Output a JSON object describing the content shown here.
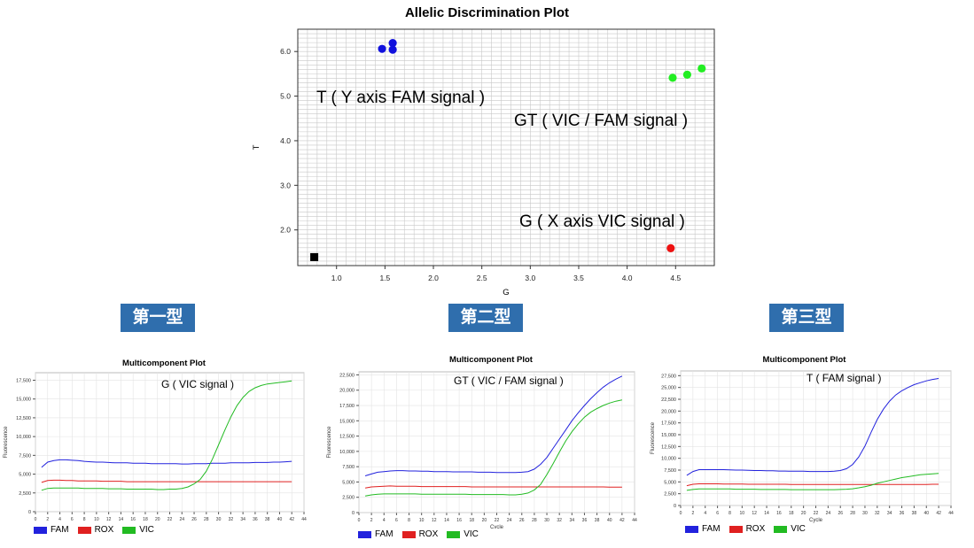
{
  "colors": {
    "FAM": "#2222dd",
    "ROX": "#e02020",
    "VIC": "#22bb22",
    "allele_T": "#1111dd",
    "allele_GT": "#22ee22",
    "allele_G": "#ee1111",
    "ntc": "#000000",
    "type_label_bg": "#2f6ead"
  },
  "allelic": {
    "annotations": {
      "t": "T ( Y axis FAM signal )",
      "gt": "GT ( VIC / FAM signal )",
      "g": "G ( X axis VIC signal )"
    }
  },
  "types": {
    "type1": "第一型",
    "type2": "第二型",
    "type3": "第三型"
  },
  "multicomponent": [
    {
      "annotation": "G ( VIC signal )",
      "ylabel": "Fluorescence",
      "xlabel": "Cycle",
      "title": "Multicomponent Plot"
    },
    {
      "annotation": "GT ( VIC / FAM signal )",
      "ylabel": "Fluorescence",
      "xlabel": "Cycle",
      "title": "Multicomponent Plot"
    },
    {
      "annotation": "T ( FAM signal )",
      "ylabel": "Fluorescence",
      "xlabel": "Cycle",
      "title": "Multicomponent Plot"
    }
  ],
  "legend": {
    "fam": "FAM",
    "rox": "ROX",
    "vic": "VIC"
  },
  "chart_data": [
    {
      "type": "scatter",
      "title": "Allelic Discrimination Plot",
      "xlabel": "G",
      "ylabel": "T",
      "xlim": [
        0.6,
        4.9
      ],
      "ylim": [
        1.2,
        6.5
      ],
      "xticks": [
        "1.0",
        "1.5",
        "2.0",
        "2.5",
        "3.0",
        "3.5",
        "4.0",
        "4.5"
      ],
      "yticks": [
        "2.0",
        "3.0",
        "4.0",
        "5.0",
        "6.0"
      ],
      "grid": true,
      "series": [
        {
          "points": [
            {
              "x": 1.47,
              "y": 6.06
            },
            {
              "x": 1.58,
              "y": 6.04
            },
            {
              "x": 1.58,
              "y": 6.19
            }
          ],
          "color": "#1111dd",
          "marker": "circle"
        },
        {
          "points": [
            {
              "x": 4.47,
              "y": 5.41
            },
            {
              "x": 4.62,
              "y": 5.48
            },
            {
              "x": 4.77,
              "y": 5.62
            }
          ],
          "color": "#22ee22",
          "marker": "circle"
        },
        {
          "points": [
            {
              "x": 4.45,
              "y": 1.59
            }
          ],
          "color": "#ee1111",
          "marker": "circle"
        },
        {
          "points": [
            {
              "x": 0.77,
              "y": 1.39
            }
          ],
          "color": "#000000",
          "marker": "square"
        }
      ]
    },
    {
      "type": "line",
      "title": "Multicomponent Plot",
      "xlabel": "Cycle",
      "ylabel": "Fluorescence",
      "xlim": [
        0,
        44
      ],
      "ylim": [
        0,
        18500
      ],
      "xticks": [
        0,
        2,
        4,
        6,
        8,
        10,
        12,
        14,
        16,
        18,
        20,
        22,
        24,
        26,
        28,
        30,
        32,
        34,
        36,
        38,
        40,
        42,
        44
      ],
      "yticks": [
        0,
        2500,
        5000,
        7500,
        10000,
        12500,
        15000,
        17500
      ],
      "ytick_labels": [
        "0",
        "2,500",
        "5,000",
        "7,500",
        "10,000",
        "12,500",
        "15,000",
        "17,500"
      ],
      "x": [
        1,
        2,
        3,
        4,
        5,
        6,
        7,
        8,
        9,
        10,
        11,
        12,
        13,
        14,
        15,
        16,
        17,
        18,
        19,
        20,
        21,
        22,
        23,
        24,
        25,
        26,
        27,
        28,
        29,
        30,
        31,
        32,
        33,
        34,
        35,
        36,
        37,
        38,
        39,
        40,
        41,
        42
      ],
      "series": [
        {
          "name": "FAM",
          "values": [
            5900,
            6600,
            6800,
            6900,
            6900,
            6850,
            6800,
            6700,
            6650,
            6600,
            6600,
            6550,
            6500,
            6500,
            6500,
            6450,
            6450,
            6450,
            6400,
            6400,
            6400,
            6400,
            6400,
            6350,
            6350,
            6400,
            6400,
            6400,
            6450,
            6450,
            6450,
            6500,
            6500,
            6500,
            6500,
            6550,
            6550,
            6550,
            6600,
            6600,
            6650,
            6700
          ]
        },
        {
          "name": "ROX",
          "values": [
            3900,
            4150,
            4200,
            4200,
            4150,
            4150,
            4100,
            4100,
            4100,
            4100,
            4050,
            4050,
            4050,
            4050,
            4000,
            4000,
            4000,
            4000,
            4000,
            4000,
            4000,
            4000,
            4000,
            4000,
            4000,
            4000,
            4000,
            4000,
            4000,
            4000,
            4000,
            4000,
            4000,
            4000,
            4000,
            4000,
            4000,
            4000,
            4000,
            4000,
            4000,
            4000
          ]
        },
        {
          "name": "VIC",
          "values": [
            2850,
            3100,
            3150,
            3150,
            3150,
            3150,
            3150,
            3100,
            3100,
            3100,
            3100,
            3050,
            3050,
            3050,
            3000,
            3000,
            3000,
            3000,
            3000,
            2950,
            2950,
            3000,
            3000,
            3100,
            3300,
            3700,
            4300,
            5400,
            7000,
            8900,
            10800,
            12600,
            14100,
            15200,
            16000,
            16500,
            16800,
            17000,
            17100,
            17200,
            17300,
            17400
          ]
        }
      ]
    },
    {
      "type": "line",
      "title": "Multicomponent Plot",
      "xlabel": "Cycle",
      "ylabel": "Fluorescence",
      "xlim": [
        0,
        44
      ],
      "ylim": [
        0,
        23000
      ],
      "xticks": [
        0,
        2,
        4,
        6,
        8,
        10,
        12,
        14,
        16,
        18,
        20,
        22,
        24,
        26,
        28,
        30,
        32,
        34,
        36,
        38,
        40,
        42,
        44
      ],
      "yticks": [
        0,
        2500,
        5000,
        7500,
        10000,
        12500,
        15000,
        17500,
        20000,
        22500
      ],
      "ytick_labels": [
        "0",
        "2,500",
        "5,000",
        "7,500",
        "10,000",
        "12,500",
        "15,000",
        "17,500",
        "20,000",
        "22,500"
      ],
      "x": [
        1,
        2,
        3,
        4,
        5,
        6,
        7,
        8,
        9,
        10,
        11,
        12,
        13,
        14,
        15,
        16,
        17,
        18,
        19,
        20,
        21,
        22,
        23,
        24,
        25,
        26,
        27,
        28,
        29,
        30,
        31,
        32,
        33,
        34,
        35,
        36,
        37,
        38,
        39,
        40,
        41,
        42
      ],
      "series": [
        {
          "name": "FAM",
          "values": [
            6000,
            6300,
            6600,
            6700,
            6800,
            6850,
            6850,
            6800,
            6800,
            6750,
            6750,
            6700,
            6700,
            6700,
            6650,
            6650,
            6650,
            6650,
            6600,
            6600,
            6600,
            6550,
            6550,
            6550,
            6550,
            6600,
            6700,
            7100,
            7900,
            9000,
            10500,
            12000,
            13500,
            15000,
            16300,
            17500,
            18600,
            19600,
            20500,
            21200,
            21800,
            22300
          ]
        },
        {
          "name": "ROX",
          "values": [
            4000,
            4200,
            4250,
            4300,
            4350,
            4300,
            4300,
            4300,
            4300,
            4250,
            4250,
            4250,
            4250,
            4250,
            4250,
            4250,
            4250,
            4200,
            4200,
            4200,
            4200,
            4200,
            4200,
            4200,
            4200,
            4200,
            4200,
            4200,
            4200,
            4200,
            4200,
            4200,
            4200,
            4200,
            4200,
            4200,
            4200,
            4200,
            4200,
            4150,
            4150,
            4150
          ]
        },
        {
          "name": "VIC",
          "values": [
            2700,
            2900,
            3000,
            3050,
            3050,
            3050,
            3050,
            3050,
            3050,
            3000,
            3000,
            3000,
            3000,
            3000,
            3000,
            3000,
            3000,
            2950,
            2950,
            2950,
            2950,
            2950,
            2950,
            2900,
            2900,
            3000,
            3200,
            3700,
            4600,
            6200,
            8000,
            9900,
            11700,
            13200,
            14500,
            15600,
            16400,
            17000,
            17500,
            17900,
            18200,
            18400
          ]
        }
      ]
    },
    {
      "type": "line",
      "title": "Multicomponent Plot",
      "xlabel": "Cycle",
      "ylabel": "Fluorescence",
      "xlim": [
        0,
        44
      ],
      "ylim": [
        0,
        28500
      ],
      "xticks": [
        0,
        2,
        4,
        6,
        8,
        10,
        12,
        14,
        16,
        18,
        20,
        22,
        24,
        26,
        28,
        30,
        32,
        34,
        36,
        38,
        40,
        42,
        44
      ],
      "yticks": [
        0,
        2500,
        5000,
        7500,
        10000,
        12500,
        15000,
        17500,
        20000,
        22500,
        25000,
        27500
      ],
      "ytick_labels": [
        "0",
        "2,500",
        "5,000",
        "7,500",
        "10,000",
        "12,500",
        "15,000",
        "17,500",
        "20,000",
        "22,500",
        "25,000",
        "27,500"
      ],
      "x": [
        1,
        2,
        3,
        4,
        5,
        6,
        7,
        8,
        9,
        10,
        11,
        12,
        13,
        14,
        15,
        16,
        17,
        18,
        19,
        20,
        21,
        22,
        23,
        24,
        25,
        26,
        27,
        28,
        29,
        30,
        31,
        32,
        33,
        34,
        35,
        36,
        37,
        38,
        39,
        40,
        41,
        42
      ],
      "series": [
        {
          "name": "FAM",
          "values": [
            6400,
            7200,
            7600,
            7600,
            7600,
            7600,
            7600,
            7550,
            7500,
            7500,
            7450,
            7400,
            7400,
            7350,
            7350,
            7300,
            7300,
            7250,
            7250,
            7250,
            7200,
            7200,
            7200,
            7200,
            7250,
            7400,
            7800,
            8700,
            10300,
            12600,
            15500,
            18200,
            20400,
            22100,
            23400,
            24300,
            25000,
            25600,
            26000,
            26400,
            26700,
            26900
          ]
        },
        {
          "name": "ROX",
          "values": [
            4200,
            4500,
            4600,
            4600,
            4600,
            4600,
            4550,
            4550,
            4550,
            4550,
            4500,
            4500,
            4500,
            4500,
            4500,
            4500,
            4500,
            4450,
            4450,
            4450,
            4450,
            4450,
            4450,
            4450,
            4450,
            4450,
            4450,
            4450,
            4450,
            4450,
            4450,
            4450,
            4450,
            4450,
            4450,
            4450,
            4450,
            4450,
            4450,
            4450,
            4500,
            4500
          ]
        },
        {
          "name": "VIC",
          "values": [
            3200,
            3400,
            3500,
            3500,
            3500,
            3500,
            3500,
            3500,
            3450,
            3450,
            3450,
            3450,
            3400,
            3400,
            3400,
            3400,
            3400,
            3350,
            3350,
            3350,
            3350,
            3350,
            3350,
            3350,
            3350,
            3400,
            3450,
            3550,
            3750,
            4000,
            4300,
            4700,
            5000,
            5300,
            5600,
            5900,
            6100,
            6300,
            6500,
            6600,
            6700,
            6800
          ]
        }
      ]
    }
  ]
}
